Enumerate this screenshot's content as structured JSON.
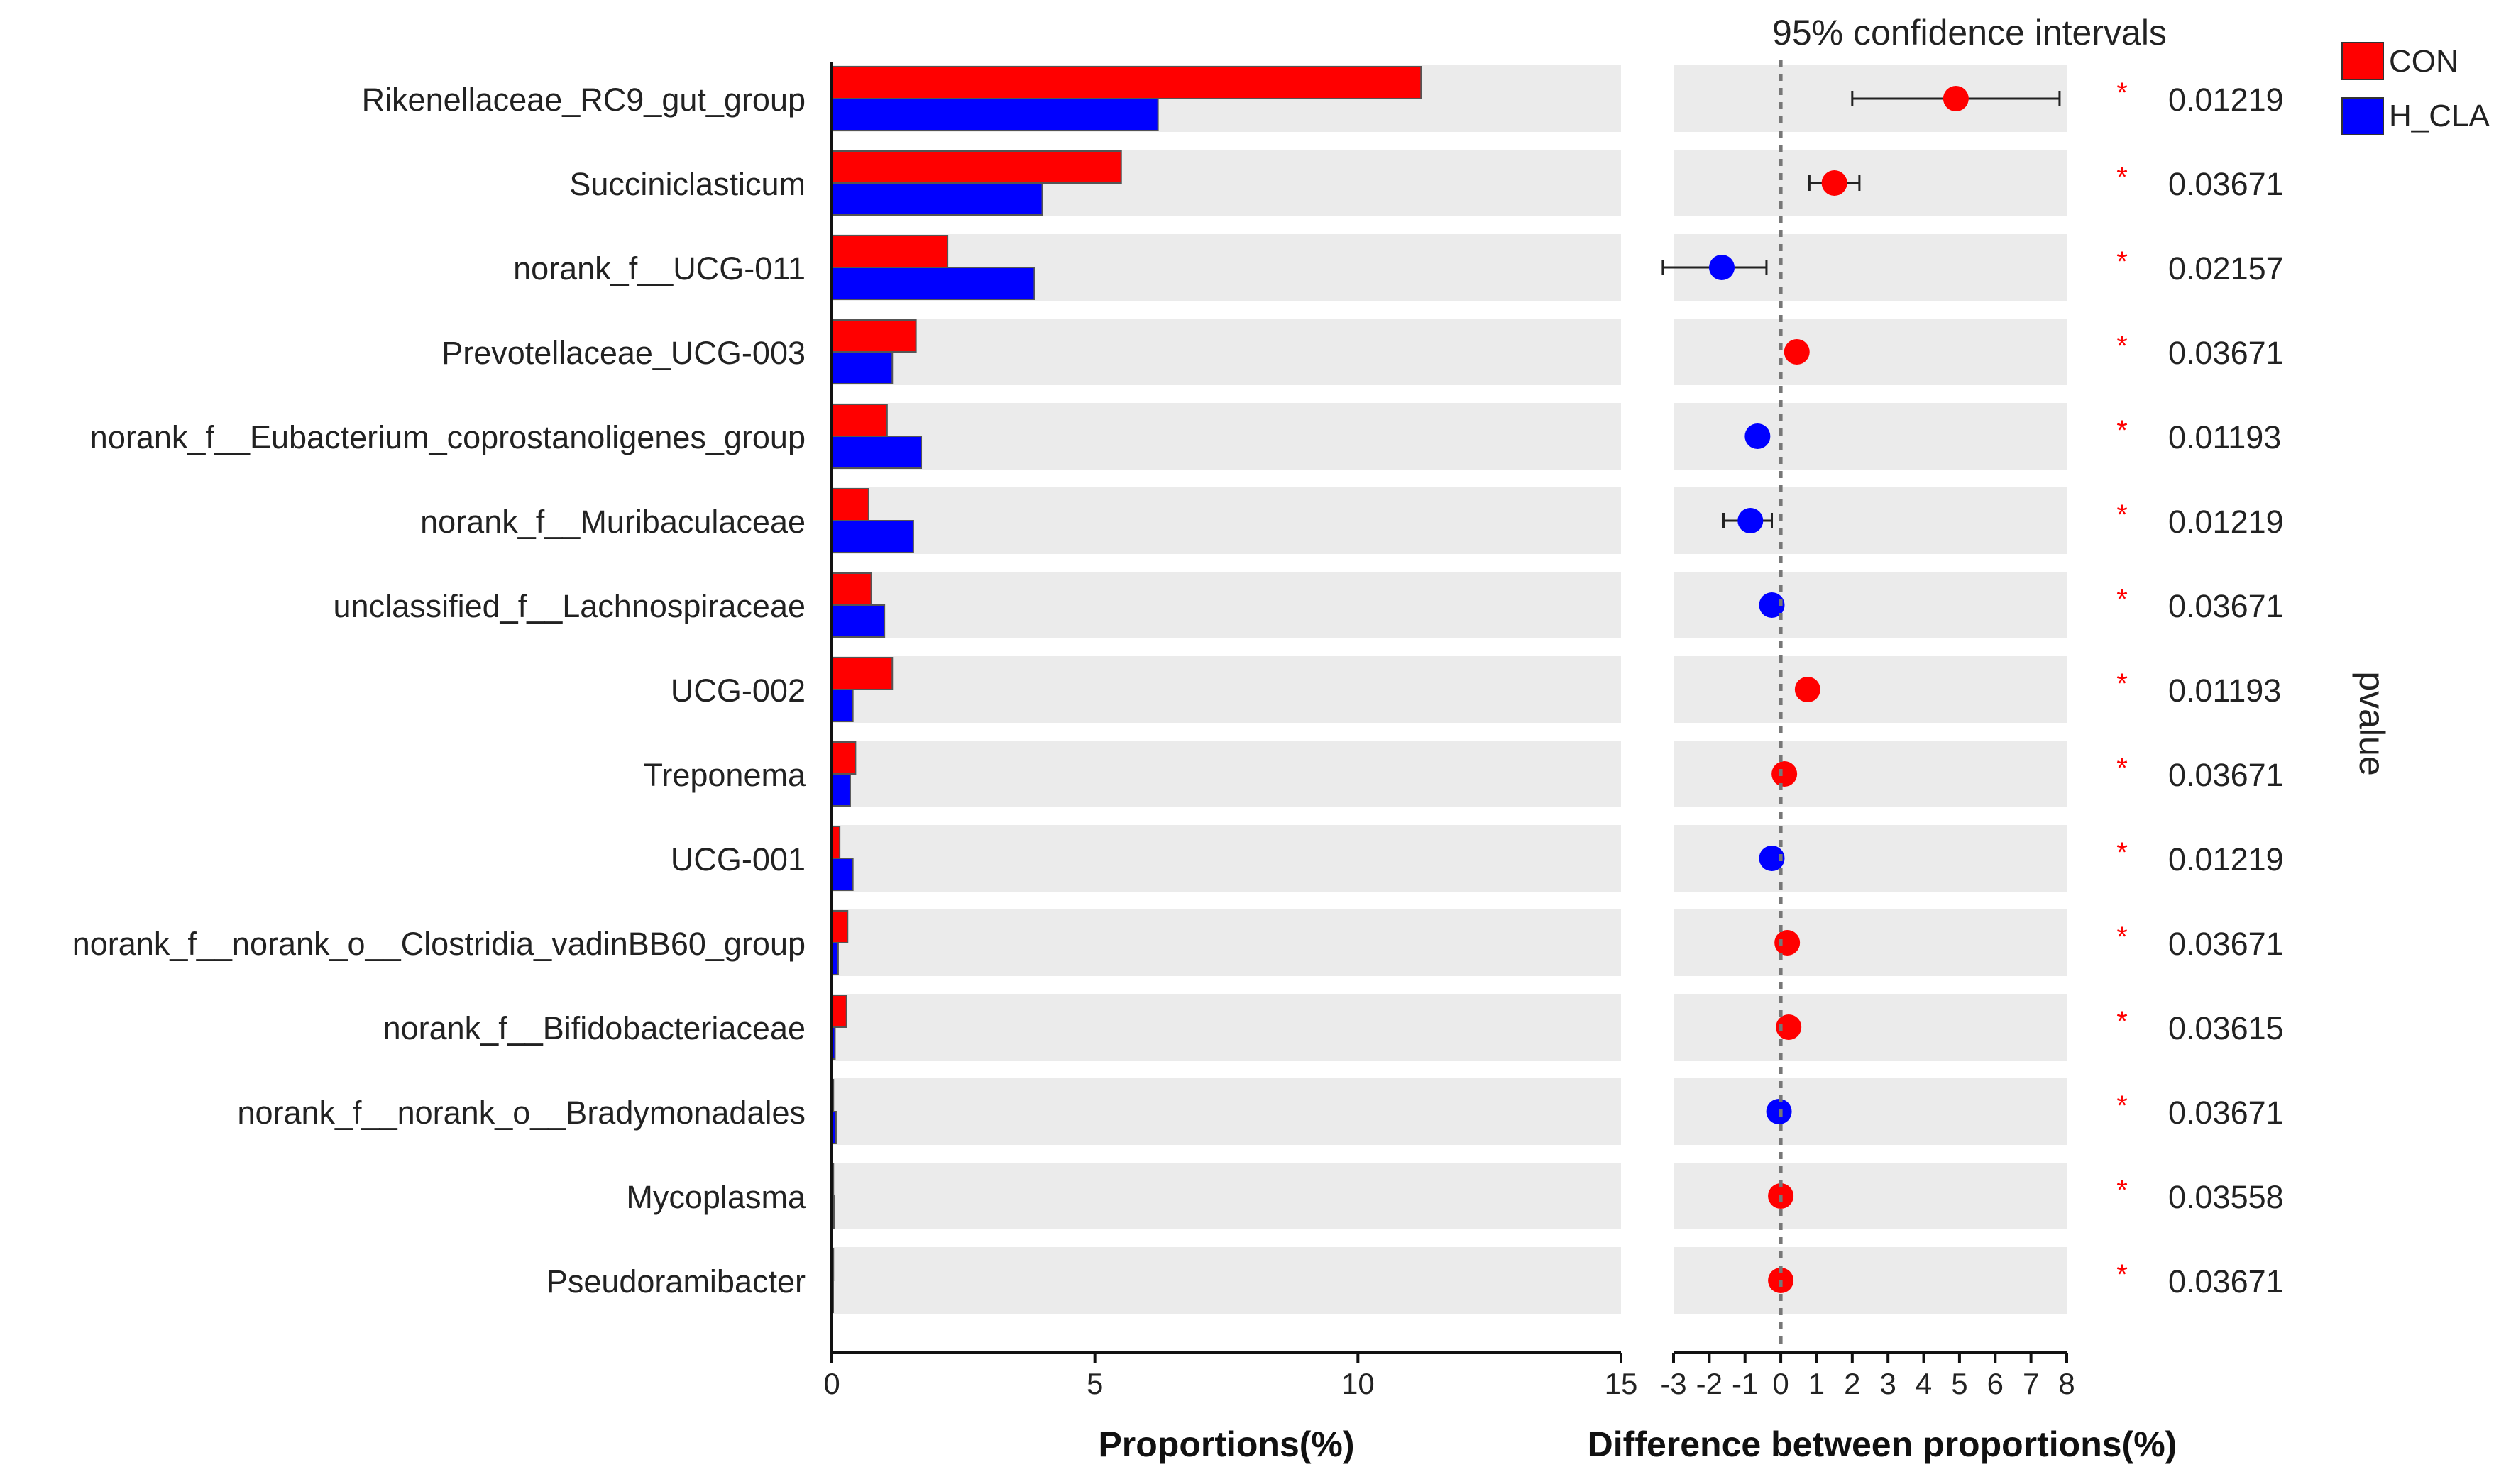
{
  "chart_data": {
    "type": "bar",
    "ci_title": "95% confidence intervals",
    "xlabel_left": "Proportions(%)",
    "xlabel_right": "Difference between proportions(%)",
    "pvalue_label": "pvalue",
    "legend": [
      {
        "name": "CON",
        "color": "#ff0000"
      },
      {
        "name": "H_CLA",
        "color": "#0000ff"
      }
    ],
    "left_xlim": [
      0,
      15
    ],
    "left_ticks": [
      "0",
      "5",
      "10",
      "15"
    ],
    "right_xlim": [
      -3,
      8
    ],
    "right_ticks": [
      "-3",
      "-2",
      "-1",
      "0",
      "1",
      "2",
      "3",
      "4",
      "5",
      "6",
      "7",
      "8"
    ],
    "categories": [
      "Rikenellaceae_RC9_gut_group",
      "Succiniclasticum",
      "norank_f__UCG-011",
      "Prevotellaceae_UCG-003",
      "norank_f__Eubacterium_coprostanoligenes_group",
      "norank_f__Muribaculaceae",
      "unclassified_f__Lachnospiraceae",
      "UCG-002",
      "Treponema",
      "UCG-001",
      "norank_f__norank_o__Clostridia_vadinBB60_group",
      "norank_f__Bifidobacteriaceae",
      "norank_f__norank_o__Bradymonadales",
      "Mycoplasma",
      "Pseudoramibacter"
    ],
    "series": [
      {
        "name": "CON",
        "values": [
          11.2,
          5.5,
          2.2,
          1.6,
          1.05,
          0.7,
          0.75,
          1.15,
          0.45,
          0.15,
          0.3,
          0.28,
          0.03,
          0.03,
          0.03
        ]
      },
      {
        "name": "H_CLA",
        "values": [
          6.2,
          4.0,
          3.85,
          1.15,
          1.7,
          1.55,
          1.0,
          0.4,
          0.35,
          0.4,
          0.12,
          0.06,
          0.08,
          0.04,
          0.02
        ]
      }
    ],
    "difference": [
      {
        "value": 4.9,
        "lower": 2.0,
        "upper": 7.8,
        "group": "CON"
      },
      {
        "value": 1.5,
        "lower": 0.8,
        "upper": 2.2,
        "group": "CON"
      },
      {
        "value": -1.65,
        "lower": -3.3,
        "upper": -0.4,
        "group": "H_CLA"
      },
      {
        "value": 0.45,
        "lower": null,
        "upper": null,
        "group": "CON"
      },
      {
        "value": -0.65,
        "lower": null,
        "upper": null,
        "group": "H_CLA"
      },
      {
        "value": -0.85,
        "lower": -1.6,
        "upper": -0.25,
        "group": "H_CLA"
      },
      {
        "value": -0.25,
        "lower": null,
        "upper": null,
        "group": "H_CLA"
      },
      {
        "value": 0.75,
        "lower": null,
        "upper": null,
        "group": "CON"
      },
      {
        "value": 0.1,
        "lower": null,
        "upper": null,
        "group": "CON"
      },
      {
        "value": -0.25,
        "lower": null,
        "upper": null,
        "group": "H_CLA"
      },
      {
        "value": 0.18,
        "lower": null,
        "upper": null,
        "group": "CON"
      },
      {
        "value": 0.22,
        "lower": null,
        "upper": null,
        "group": "CON"
      },
      {
        "value": -0.05,
        "lower": null,
        "upper": null,
        "group": "H_CLA"
      },
      {
        "value": 0.0,
        "lower": null,
        "upper": null,
        "group": "CON"
      },
      {
        "value": 0.0,
        "lower": null,
        "upper": null,
        "group": "CON"
      }
    ],
    "significance": [
      "*",
      "*",
      "*",
      "*",
      "*",
      "*",
      "*",
      "*",
      "*",
      "*",
      "*",
      "*",
      "*",
      "*",
      "*"
    ],
    "pvalues": [
      "0.01219",
      "0.03671",
      "0.02157",
      "0.03671",
      "0.01193",
      "0.01219",
      "0.03671",
      "0.01193",
      "0.03671",
      "0.01219",
      "0.03671",
      "0.03615",
      "0.03671",
      "0.03558",
      "0.03671"
    ]
  }
}
